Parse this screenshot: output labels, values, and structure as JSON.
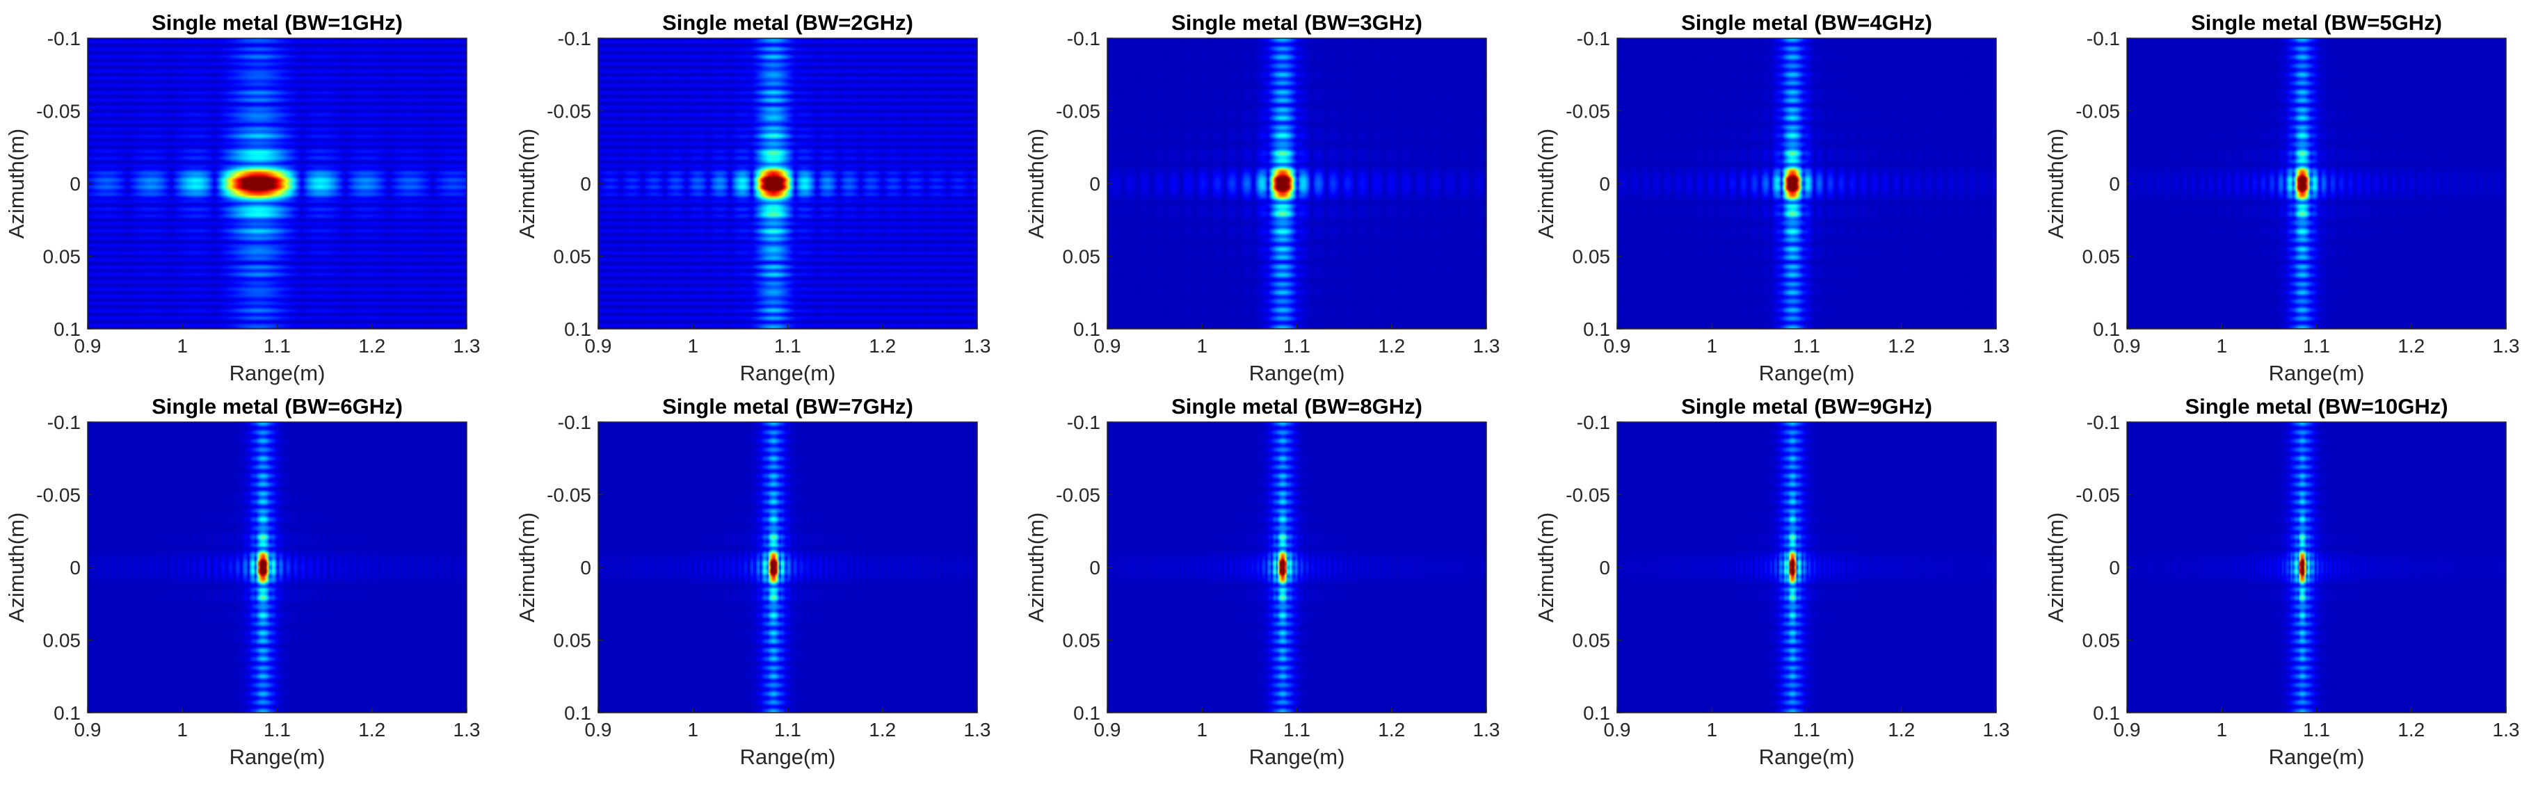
{
  "chart_data": {
    "type": "heatmap",
    "description_colormap": "jet",
    "x_axis": {
      "label": "Range(m)",
      "lim": [
        0.9,
        1.3
      ],
      "ticks": [
        0.9,
        1,
        1.1,
        1.2,
        1.3
      ],
      "tick_labels": [
        "0.9",
        "1",
        "1.1",
        "1.2",
        "1.3"
      ]
    },
    "y_axis": {
      "label": "Azimuth(m)",
      "lim": [
        -0.1,
        0.1
      ],
      "reversed": true,
      "ticks": [
        -0.1,
        -0.05,
        0,
        0.05,
        0.1
      ],
      "tick_labels": [
        "-0.1",
        "-0.05",
        "0",
        "0.05",
        "0.1"
      ]
    },
    "panels": [
      {
        "title": "Single metal (BW=1GHz)",
        "bandwidth_ghz": 1,
        "peak_range_m": 1.08,
        "peak_azimuth_m": 0.0
      },
      {
        "title": "Single metal (BW=2GHz)",
        "bandwidth_ghz": 2,
        "peak_range_m": 1.085,
        "peak_azimuth_m": 0.0
      },
      {
        "title": "Single metal (BW=3GHz)",
        "bandwidth_ghz": 3,
        "peak_range_m": 1.085,
        "peak_azimuth_m": 0.0
      },
      {
        "title": "Single metal (BW=4GHz)",
        "bandwidth_ghz": 4,
        "peak_range_m": 1.085,
        "peak_azimuth_m": 0.0
      },
      {
        "title": "Single metal (BW=5GHz)",
        "bandwidth_ghz": 5,
        "peak_range_m": 1.085,
        "peak_azimuth_m": 0.0
      },
      {
        "title": "Single metal (BW=6GHz)",
        "bandwidth_ghz": 6,
        "peak_range_m": 1.085,
        "peak_azimuth_m": 0.0
      },
      {
        "title": "Single metal (BW=7GHz)",
        "bandwidth_ghz": 7,
        "peak_range_m": 1.085,
        "peak_azimuth_m": 0.0
      },
      {
        "title": "Single metal (BW=8GHz)",
        "bandwidth_ghz": 8,
        "peak_range_m": 1.085,
        "peak_azimuth_m": 0.0
      },
      {
        "title": "Single metal (BW=9GHz)",
        "bandwidth_ghz": 9,
        "peak_range_m": 1.085,
        "peak_azimuth_m": 0.0
      },
      {
        "title": "Single metal (BW=10GHz)",
        "bandwidth_ghz": 10,
        "peak_range_m": 1.085,
        "peak_azimuth_m": 0.0
      }
    ]
  }
}
